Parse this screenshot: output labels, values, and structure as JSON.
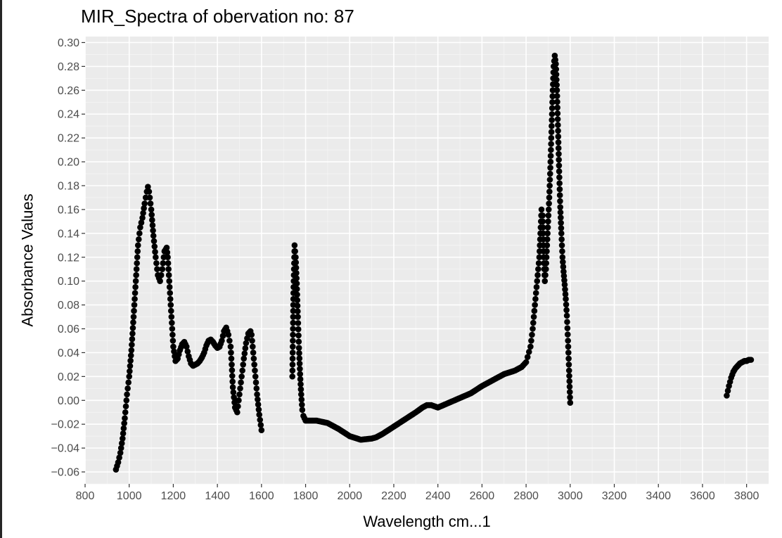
{
  "chart_data": {
    "type": "scatter",
    "title": "MIR_Spectra of obervation no: 87",
    "xlabel": "Wavelength  cm...1",
    "ylabel": "Absorbance Values",
    "xlim": [
      800,
      3900
    ],
    "ylim": [
      -0.07,
      0.305
    ],
    "x_ticks": [
      800,
      1000,
      1200,
      1400,
      1600,
      1800,
      2000,
      2200,
      2400,
      2600,
      2800,
      3000,
      3200,
      3400,
      3600,
      3800
    ],
    "y_ticks": [
      -0.06,
      -0.04,
      -0.02,
      0.0,
      0.02,
      0.04,
      0.06,
      0.08,
      0.1,
      0.12,
      0.14,
      0.16,
      0.18,
      0.2,
      0.22,
      0.24,
      0.26,
      0.28,
      0.3
    ],
    "grid": true,
    "background": "#ebebeb",
    "point_color": "#000000",
    "segments": [
      {
        "x": [
          940,
          950,
          960,
          970,
          980,
          990,
          1000,
          1010,
          1020,
          1030,
          1040,
          1050,
          1060,
          1070,
          1080,
          1085,
          1090,
          1100,
          1110,
          1120,
          1130,
          1140,
          1150,
          1160,
          1170,
          1175,
          1180,
          1190,
          1200,
          1210,
          1220,
          1230,
          1240,
          1250,
          1260,
          1270,
          1280,
          1290,
          1300,
          1310,
          1320,
          1330,
          1340,
          1350,
          1360,
          1370,
          1380,
          1390,
          1400,
          1410,
          1420,
          1430,
          1440,
          1450,
          1460,
          1465,
          1470,
          1480,
          1490,
          1500,
          1510,
          1520,
          1530,
          1540,
          1550,
          1555,
          1560,
          1570,
          1580,
          1590,
          1600
        ],
        "y": [
          -0.058,
          -0.052,
          -0.044,
          -0.032,
          -0.015,
          0.005,
          0.02,
          0.042,
          0.07,
          0.1,
          0.13,
          0.145,
          0.153,
          0.165,
          0.175,
          0.179,
          0.175,
          0.16,
          0.138,
          0.12,
          0.105,
          0.1,
          0.11,
          0.125,
          0.128,
          0.12,
          0.105,
          0.075,
          0.045,
          0.033,
          0.035,
          0.042,
          0.047,
          0.049,
          0.045,
          0.037,
          0.031,
          0.029,
          0.03,
          0.031,
          0.033,
          0.036,
          0.04,
          0.046,
          0.05,
          0.051,
          0.049,
          0.046,
          0.044,
          0.045,
          0.05,
          0.058,
          0.061,
          0.055,
          0.045,
          0.03,
          0.011,
          -0.006,
          -0.01,
          0.005,
          0.02,
          0.035,
          0.048,
          0.056,
          0.058,
          0.055,
          0.045,
          0.025,
          0.005,
          -0.012,
          -0.025
        ]
      },
      {
        "x": [
          1740,
          1745,
          1750,
          1755,
          1760,
          1765,
          1770,
          1775,
          1780,
          1785,
          1790,
          1800,
          1850,
          1900,
          1950,
          2000,
          2050,
          2100,
          2120,
          2150,
          2200,
          2250,
          2300,
          2330,
          2350,
          2370,
          2400,
          2450,
          2500,
          2550,
          2600,
          2650,
          2700,
          2750,
          2780,
          2800,
          2820,
          2830,
          2840,
          2850,
          2860,
          2865,
          2870,
          2875,
          2880,
          2885,
          2890,
          2895,
          2900,
          2905,
          2910,
          2915,
          2920,
          2925,
          2930,
          2935,
          2940,
          2945,
          2950,
          2955,
          2960,
          2965,
          2970,
          2975,
          2980,
          2985,
          2990,
          2995,
          3000
        ],
        "y": [
          0.02,
          0.09,
          0.13,
          0.12,
          0.098,
          0.07,
          0.044,
          0.022,
          0.005,
          -0.008,
          -0.013,
          -0.017,
          -0.017,
          -0.019,
          -0.024,
          -0.03,
          -0.033,
          -0.032,
          -0.031,
          -0.028,
          -0.022,
          -0.016,
          -0.01,
          -0.006,
          -0.004,
          -0.004,
          -0.006,
          -0.002,
          0.002,
          0.006,
          0.012,
          0.017,
          0.022,
          0.025,
          0.028,
          0.032,
          0.045,
          0.06,
          0.08,
          0.1,
          0.12,
          0.14,
          0.16,
          0.155,
          0.12,
          0.1,
          0.11,
          0.13,
          0.15,
          0.17,
          0.195,
          0.225,
          0.255,
          0.28,
          0.289,
          0.282,
          0.26,
          0.226,
          0.192,
          0.162,
          0.14,
          0.12,
          0.108,
          0.097,
          0.085,
          0.071,
          0.05,
          0.025,
          -0.002
        ]
      },
      {
        "x": [
          3710,
          3720,
          3730,
          3740,
          3750,
          3760,
          3770,
          3780,
          3790,
          3800,
          3810,
          3820
        ],
        "y": [
          0.004,
          0.012,
          0.019,
          0.024,
          0.027,
          0.029,
          0.031,
          0.032,
          0.033,
          0.033,
          0.034,
          0.034
        ]
      }
    ]
  }
}
